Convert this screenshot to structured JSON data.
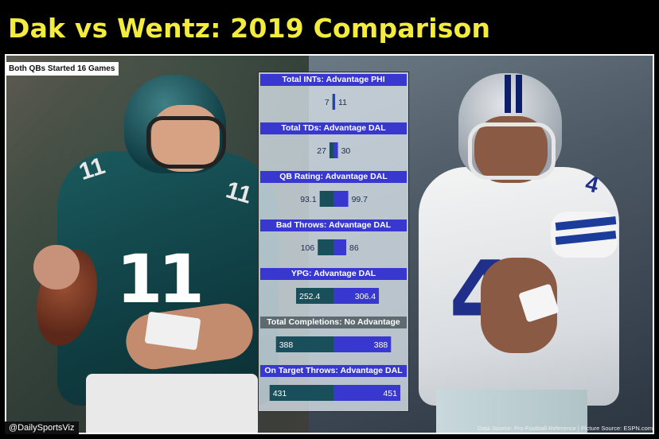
{
  "title": "Dak vs Wentz: 2019 Comparison",
  "badge": "Both QBs Started 16 Games",
  "footer_handle": "@DailySportsViz",
  "footer_source": "Data Source: Pro-Football-Reference | Picture Source: ESPN.com",
  "player_numbers": {
    "left": "11",
    "right": "4"
  },
  "colors": {
    "phi": "#184f5a",
    "dal": "#3838d0",
    "title": "#f3ec3e",
    "neutral": "#5d6a70"
  },
  "chart_data": [
    {
      "type": "bar",
      "title": "Total INTs: Advantage PHI",
      "phi": 7,
      "dal": 11,
      "advantage": "PHI"
    },
    {
      "type": "bar",
      "title": "Total TDs: Advantage DAL",
      "phi": 27,
      "dal": 30,
      "advantage": "DAL"
    },
    {
      "type": "bar",
      "title": "QB Rating: Advantage DAL",
      "phi": 93.1,
      "dal": 99.7,
      "advantage": "DAL"
    },
    {
      "type": "bar",
      "title": "Bad Throws: Advantage DAL",
      "phi": 106,
      "dal": 86,
      "advantage": "DAL"
    },
    {
      "type": "bar",
      "title": "YPG: Advantage DAL",
      "phi": 252.4,
      "dal": 306.4,
      "advantage": "DAL"
    },
    {
      "type": "bar",
      "title": "Total Completions: No Advantage",
      "phi": 388,
      "dal": 388,
      "advantage": "None"
    },
    {
      "type": "bar",
      "title": "On Target Throws: Advantage DAL",
      "phi": 431,
      "dal": 451,
      "advantage": "DAL"
    }
  ]
}
